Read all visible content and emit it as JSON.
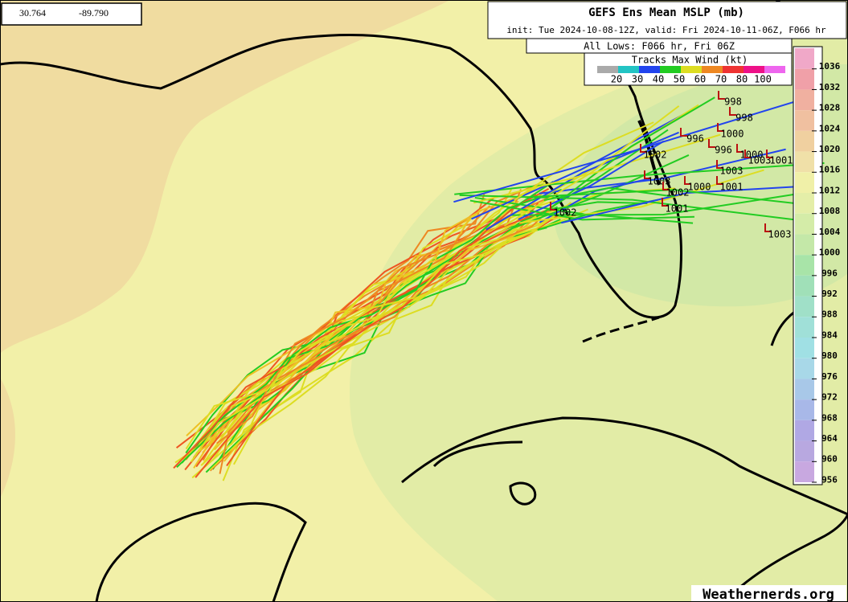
{
  "coords": {
    "lat": "30.764",
    "lon": "-89.790"
  },
  "header": {
    "title": "GEFS Ens Mean MSLP (mb)",
    "init": "init: Tue 2024-10-08-12Z, valid: Fri 2024-10-11-06Z, F066 hr",
    "lows": "All Lows: F066 hr, Fri 06Z"
  },
  "wind_legend": {
    "title": "Tracks Max Wind (kt)",
    "colors": [
      "#aaaaaa",
      "#22c4c4",
      "#2244ee",
      "#22cc22",
      "#dddd22",
      "#ee8822",
      "#ee3333",
      "#ee1188",
      "#ee66ee"
    ],
    "labels": [
      "20",
      "30",
      "40",
      "50",
      "60",
      "70",
      "80",
      "100"
    ]
  },
  "colorbar": {
    "labels": [
      "1036",
      "1032",
      "1028",
      "1024",
      "1020",
      "1016",
      "1012",
      "1008",
      "1004",
      "1000",
      "996",
      "992",
      "988",
      "984",
      "980",
      "976",
      "972",
      "968",
      "964",
      "960",
      "956"
    ],
    "colors": [
      "#f0a8c8",
      "#f0a0a8",
      "#f0b0a0",
      "#f0c0a0",
      "#f0d0a0",
      "#f0e0a8",
      "#f0f0a8",
      "#e4eea8",
      "#d4eca8",
      "#c4e8a8",
      "#a8e4a8",
      "#a0e0b8",
      "#a0e0c8",
      "#a0e0d8",
      "#a0e0e4",
      "#a8d8e8",
      "#a8c8e8",
      "#a8b8e8",
      "#b0a8e4",
      "#b8a8e0",
      "#c8a8e0"
    ]
  },
  "lows": [
    "998",
    "998",
    "1000",
    "996",
    "996",
    "1000",
    "1003",
    "1001",
    "1002",
    "1003",
    "1003",
    "1002",
    "1000",
    "1001",
    "1001",
    "1002",
    "1003"
  ],
  "footer": {
    "credit": "Weathernerds.org"
  }
}
